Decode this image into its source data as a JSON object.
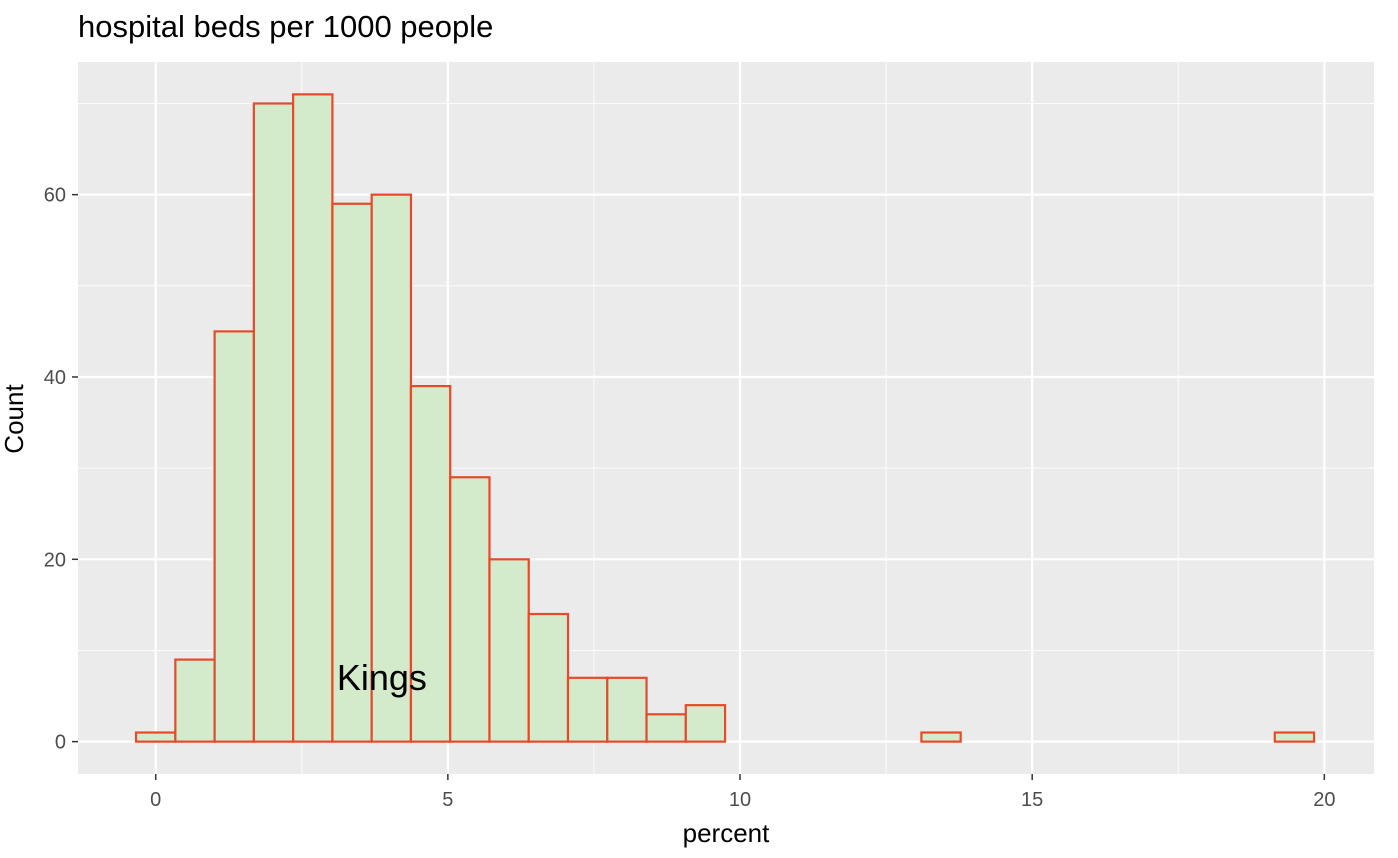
{
  "chart_data": {
    "type": "bar",
    "title": "hospital beds per 1000 people",
    "xlabel": "percent",
    "ylabel": "Count",
    "xlim": [
      -1.33,
      20.85
    ],
    "ylim": [
      -3.55,
      74.55
    ],
    "x_ticks": [
      0,
      5,
      10,
      15,
      20
    ],
    "y_ticks": [
      0,
      20,
      40,
      60
    ],
    "bin_width": 0.672,
    "bins": [
      {
        "x0": -0.336,
        "x1": 0.336,
        "count": 1
      },
      {
        "x0": 0.336,
        "x1": 1.008,
        "count": 9
      },
      {
        "x0": 1.008,
        "x1": 1.68,
        "count": 45
      },
      {
        "x0": 1.68,
        "x1": 2.352,
        "count": 70
      },
      {
        "x0": 2.352,
        "x1": 3.024,
        "count": 71
      },
      {
        "x0": 3.024,
        "x1": 3.696,
        "count": 59
      },
      {
        "x0": 3.696,
        "x1": 4.368,
        "count": 60
      },
      {
        "x0": 4.368,
        "x1": 5.04,
        "count": 39
      },
      {
        "x0": 5.04,
        "x1": 5.712,
        "count": 29
      },
      {
        "x0": 5.712,
        "x1": 6.384,
        "count": 20
      },
      {
        "x0": 6.384,
        "x1": 7.056,
        "count": 14
      },
      {
        "x0": 7.056,
        "x1": 7.728,
        "count": 7
      },
      {
        "x0": 7.728,
        "x1": 8.4,
        "count": 7
      },
      {
        "x0": 8.4,
        "x1": 9.072,
        "count": 3
      },
      {
        "x0": 9.072,
        "x1": 9.744,
        "count": 4
      },
      {
        "x0": 9.744,
        "x1": 10.416,
        "count": 0
      },
      {
        "x0": 10.416,
        "x1": 11.088,
        "count": 0
      },
      {
        "x0": 11.088,
        "x1": 11.76,
        "count": 0
      },
      {
        "x0": 11.76,
        "x1": 12.432,
        "count": 0
      },
      {
        "x0": 12.432,
        "x1": 13.104,
        "count": 0
      },
      {
        "x0": 13.104,
        "x1": 13.776,
        "count": 1
      },
      {
        "x0": 13.776,
        "x1": 14.448,
        "count": 0
      },
      {
        "x0": 14.448,
        "x1": 15.12,
        "count": 0
      },
      {
        "x0": 15.12,
        "x1": 15.792,
        "count": 0
      },
      {
        "x0": 15.792,
        "x1": 16.464,
        "count": 0
      },
      {
        "x0": 16.464,
        "x1": 17.136,
        "count": 0
      },
      {
        "x0": 17.136,
        "x1": 17.808,
        "count": 0
      },
      {
        "x0": 17.808,
        "x1": 18.48,
        "count": 0
      },
      {
        "x0": 18.48,
        "x1": 19.152,
        "count": 0
      },
      {
        "x0": 19.152,
        "x1": 19.824,
        "count": 1
      }
    ],
    "annotations": [
      {
        "text": "Kings",
        "x": 3.1,
        "y": 7
      }
    ],
    "grid": true,
    "legend": "none",
    "colors": {
      "panel_background": "#ebebeb",
      "grid_major": "#ffffff",
      "bar_fill": "#d3ebca",
      "bar_outline": "#e8492b",
      "tick_label": "#4d4d4d",
      "tick_mark": "#333333"
    }
  }
}
